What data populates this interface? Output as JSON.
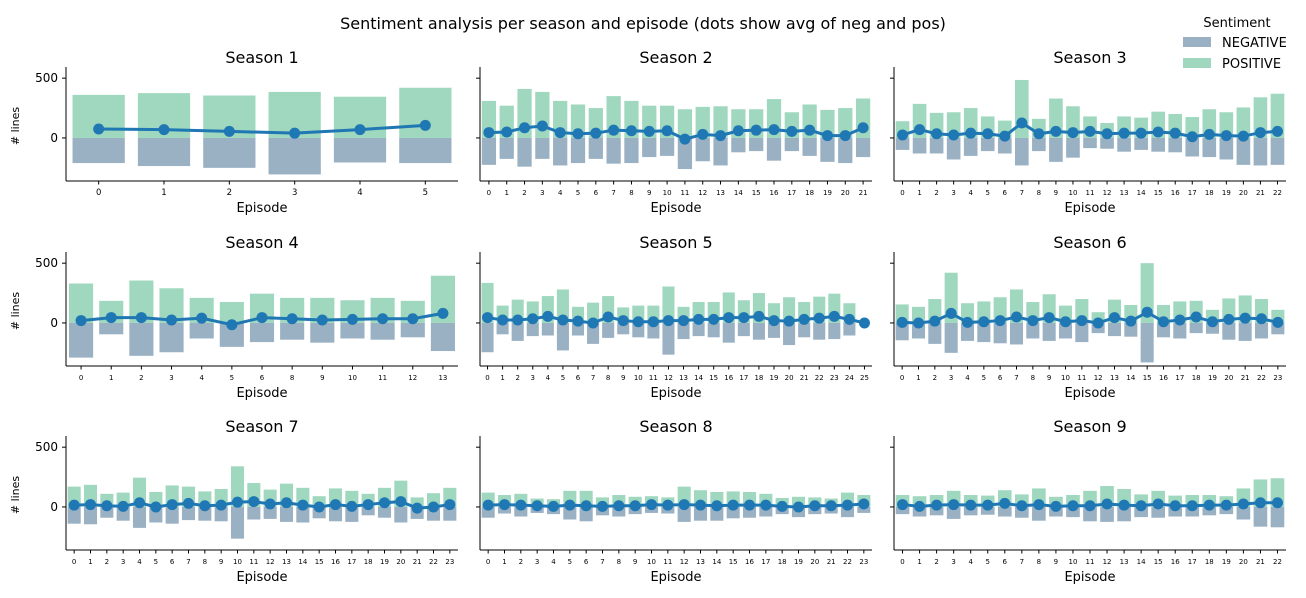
{
  "figure": {
    "title": "Sentiment analysis per season and episode (dots show avg of neg and pos)",
    "legend": {
      "title": "Sentiment",
      "placement": "top-right",
      "entries": [
        {
          "label": "NEGATIVE",
          "color": "#9ab1c4"
        },
        {
          "label": "POSITIVE",
          "color": "#9fd8be"
        }
      ]
    },
    "colors": {
      "negative": "#9ab1c4",
      "positive": "#9fd8be",
      "line": "#1f77b4"
    }
  },
  "chart_data": [
    {
      "type": "bar",
      "title": "Season 1",
      "xlabel": "Episode",
      "ylabel": "# lines",
      "ylim": [
        -360,
        560
      ],
      "yticks": [
        0,
        500
      ],
      "categories": [
        "0",
        "1",
        "2",
        "3",
        "4",
        "5"
      ],
      "series": [
        {
          "name": "POSITIVE",
          "values": [
            360,
            375,
            355,
            385,
            345,
            420
          ]
        },
        {
          "name": "NEGATIVE",
          "values": [
            -210,
            -235,
            -250,
            -305,
            -205,
            -210
          ]
        }
      ],
      "avg": [
        75,
        70,
        55,
        40,
        70,
        105
      ]
    },
    {
      "type": "bar",
      "title": "Season 2",
      "xlabel": "Episode",
      "ylabel": "",
      "ylim": [
        -360,
        560
      ],
      "yticks": [
        0,
        500
      ],
      "categories": [
        "0",
        "1",
        "2",
        "3",
        "4",
        "5",
        "6",
        "7",
        "8",
        "9",
        "10",
        "11",
        "12",
        "13",
        "14",
        "15",
        "16",
        "17",
        "18",
        "19",
        "20",
        "21"
      ],
      "series": [
        {
          "name": "POSITIVE",
          "values": [
            310,
            270,
            410,
            385,
            310,
            280,
            250,
            350,
            310,
            270,
            270,
            240,
            260,
            265,
            240,
            240,
            325,
            215,
            280,
            235,
            250,
            330
          ]
        },
        {
          "name": "NEGATIVE",
          "values": [
            -225,
            -175,
            -240,
            -175,
            -230,
            -210,
            -175,
            -215,
            -210,
            -160,
            -150,
            -260,
            -195,
            -230,
            -120,
            -110,
            -190,
            -110,
            -150,
            -200,
            -210,
            -160
          ]
        }
      ],
      "avg": [
        45,
        50,
        85,
        100,
        45,
        35,
        40,
        65,
        60,
        55,
        60,
        -10,
        30,
        20,
        60,
        65,
        70,
        55,
        65,
        20,
        20,
        85
      ]
    },
    {
      "type": "bar",
      "title": "Season 3",
      "xlabel": "Episode",
      "ylabel": "",
      "ylim": [
        -360,
        560
      ],
      "yticks": [
        0,
        500
      ],
      "categories": [
        "0",
        "1",
        "2",
        "3",
        "4",
        "5",
        "6",
        "7",
        "8",
        "9",
        "10",
        "11",
        "12",
        "13",
        "14",
        "15",
        "16",
        "17",
        "18",
        "19",
        "20",
        "21",
        "22"
      ],
      "series": [
        {
          "name": "POSITIVE",
          "values": [
            140,
            285,
            210,
            215,
            250,
            180,
            145,
            485,
            160,
            330,
            265,
            180,
            125,
            180,
            170,
            220,
            200,
            175,
            240,
            215,
            255,
            340,
            370
          ]
        },
        {
          "name": "NEGATIVE",
          "values": [
            -100,
            -130,
            -130,
            -180,
            -150,
            -110,
            -130,
            -230,
            -110,
            -200,
            -165,
            -85,
            -90,
            -115,
            -100,
            -115,
            -120,
            -155,
            -160,
            -180,
            -225,
            -230,
            -225
          ]
        }
      ],
      "avg": [
        25,
        70,
        35,
        25,
        40,
        35,
        15,
        125,
        35,
        55,
        45,
        55,
        35,
        40,
        40,
        50,
        40,
        10,
        30,
        20,
        15,
        45,
        55
      ]
    },
    {
      "type": "bar",
      "title": "Season 4",
      "xlabel": "Episode",
      "ylabel": "# lines",
      "ylim": [
        -360,
        560
      ],
      "yticks": [
        0,
        500
      ],
      "categories": [
        "0",
        "1",
        "2",
        "3",
        "4",
        "5",
        "6",
        "8",
        "9",
        "10",
        "11",
        "12",
        "13"
      ],
      "series": [
        {
          "name": "POSITIVE",
          "values": [
            330,
            185,
            355,
            290,
            210,
            175,
            245,
            210,
            210,
            190,
            210,
            185,
            395
          ]
        },
        {
          "name": "NEGATIVE",
          "values": [
            -290,
            -95,
            -275,
            -245,
            -130,
            -200,
            -160,
            -140,
            -165,
            -130,
            -140,
            -120,
            -235
          ]
        }
      ],
      "avg": [
        20,
        45,
        45,
        25,
        40,
        -15,
        45,
        35,
        25,
        30,
        35,
        35,
        80
      ]
    },
    {
      "type": "bar",
      "title": "Season 5",
      "xlabel": "Episode",
      "ylabel": "",
      "ylim": [
        -360,
        560
      ],
      "yticks": [
        0,
        500
      ],
      "categories": [
        "0",
        "1",
        "2",
        "3",
        "4",
        "5",
        "6",
        "7",
        "8",
        "9",
        "10",
        "11",
        "12",
        "13",
        "14",
        "15",
        "16",
        "17",
        "18",
        "19",
        "20",
        "21",
        "22",
        "23",
        "24",
        "25"
      ],
      "series": [
        {
          "name": "POSITIVE",
          "values": [
            335,
            145,
            195,
            180,
            225,
            280,
            135,
            170,
            225,
            130,
            145,
            145,
            305,
            135,
            175,
            175,
            255,
            190,
            250,
            165,
            215,
            175,
            220,
            245,
            165,
            0
          ]
        },
        {
          "name": "NEGATIVE",
          "values": [
            -245,
            -95,
            -150,
            -110,
            -105,
            -230,
            -105,
            -175,
            -125,
            -95,
            -120,
            -130,
            -265,
            -135,
            -110,
            -120,
            -165,
            -110,
            -140,
            -125,
            -185,
            -120,
            -140,
            -135,
            -105,
            0
          ]
        }
      ],
      "avg": [
        45,
        25,
        25,
        35,
        55,
        25,
        15,
        0,
        50,
        20,
        10,
        10,
        20,
        20,
        30,
        30,
        45,
        45,
        55,
        20,
        15,
        30,
        40,
        55,
        30,
        0
      ]
    },
    {
      "type": "bar",
      "title": "Season 6",
      "xlabel": "Episode",
      "ylabel": "",
      "ylim": [
        -360,
        560
      ],
      "yticks": [
        0,
        500
      ],
      "categories": [
        "0",
        "1",
        "2",
        "3",
        "4",
        "5",
        "6",
        "7",
        "8",
        "9",
        "10",
        "11",
        "12",
        "13",
        "14",
        "15",
        "16",
        "17",
        "18",
        "19",
        "20",
        "21",
        "22",
        "23"
      ],
      "series": [
        {
          "name": "POSITIVE",
          "values": [
            155,
            135,
            200,
            420,
            165,
            180,
            215,
            280,
            175,
            240,
            145,
            200,
            90,
            195,
            150,
            500,
            150,
            180,
            185,
            110,
            205,
            230,
            200,
            110
          ]
        },
        {
          "name": "NEGATIVE",
          "values": [
            -145,
            -130,
            -175,
            -250,
            -150,
            -160,
            -170,
            -180,
            -130,
            -150,
            -130,
            -160,
            -85,
            -110,
            -115,
            -330,
            -120,
            -130,
            -85,
            -90,
            -140,
            -150,
            -130,
            -95
          ]
        }
      ],
      "avg": [
        5,
        0,
        15,
        80,
        5,
        10,
        20,
        50,
        20,
        45,
        10,
        20,
        0,
        45,
        15,
        90,
        10,
        25,
        50,
        10,
        30,
        40,
        35,
        5
      ]
    },
    {
      "type": "bar",
      "title": "Season 7",
      "xlabel": "Episode",
      "ylabel": "# lines",
      "ylim": [
        -360,
        560
      ],
      "yticks": [
        0,
        500
      ],
      "categories": [
        "0",
        "1",
        "2",
        "3",
        "4",
        "5",
        "6",
        "7",
        "8",
        "9",
        "10",
        "11",
        "12",
        "13",
        "14",
        "15",
        "16",
        "17",
        "18",
        "19",
        "20",
        "21",
        "22",
        "23"
      ],
      "series": [
        {
          "name": "POSITIVE",
          "values": [
            170,
            185,
            110,
            120,
            245,
            125,
            180,
            170,
            130,
            150,
            340,
            200,
            145,
            195,
            160,
            90,
            155,
            135,
            110,
            160,
            220,
            80,
            115,
            160
          ]
        },
        {
          "name": "NEGATIVE",
          "values": [
            -140,
            -145,
            -90,
            -115,
            -175,
            -130,
            -140,
            -110,
            -115,
            -120,
            -265,
            -105,
            -100,
            -125,
            -130,
            -95,
            -120,
            -125,
            -70,
            -90,
            -130,
            -100,
            -115,
            -115
          ]
        }
      ],
      "avg": [
        15,
        20,
        10,
        5,
        35,
        0,
        20,
        30,
        10,
        15,
        40,
        45,
        25,
        35,
        15,
        0,
        20,
        5,
        20,
        35,
        45,
        -10,
        0,
        20
      ]
    },
    {
      "type": "bar",
      "title": "Season 8",
      "xlabel": "Episode",
      "ylabel": "",
      "ylim": [
        -360,
        560
      ],
      "yticks": [
        0,
        500
      ],
      "categories": [
        "0",
        "1",
        "2",
        "3",
        "4",
        "5",
        "6",
        "7",
        "8",
        "9",
        "10",
        "11",
        "12",
        "13",
        "14",
        "15",
        "16",
        "17",
        "18",
        "19",
        "20",
        "21",
        "22",
        "23"
      ],
      "series": [
        {
          "name": "POSITIVE",
          "values": [
            120,
            100,
            110,
            70,
            65,
            135,
            135,
            80,
            100,
            85,
            90,
            80,
            170,
            140,
            125,
            130,
            125,
            110,
            75,
            85,
            80,
            70,
            120,
            100
          ]
        },
        {
          "name": "NEGATIVE",
          "values": [
            -90,
            -55,
            -80,
            -50,
            -60,
            -105,
            -120,
            -70,
            -80,
            -60,
            -50,
            -55,
            -125,
            -115,
            -115,
            -95,
            -90,
            -80,
            -60,
            -85,
            -60,
            -55,
            -85,
            -50
          ]
        }
      ],
      "avg": [
        15,
        20,
        15,
        10,
        5,
        15,
        10,
        5,
        10,
        10,
        20,
        15,
        20,
        15,
        10,
        15,
        15,
        15,
        5,
        0,
        10,
        10,
        15,
        25
      ]
    },
    {
      "type": "bar",
      "title": "Season 9",
      "xlabel": "Episode",
      "ylabel": "",
      "ylim": [
        -360,
        560
      ],
      "yticks": [
        0,
        500
      ],
      "categories": [
        "0",
        "1",
        "2",
        "3",
        "4",
        "5",
        "6",
        "7",
        "8",
        "9",
        "10",
        "11",
        "12",
        "13",
        "14",
        "15",
        "16",
        "17",
        "18",
        "19",
        "20",
        "21",
        "22"
      ],
      "series": [
        {
          "name": "POSITIVE",
          "values": [
            100,
            90,
            100,
            135,
            100,
            95,
            140,
            105,
            155,
            85,
            100,
            135,
            175,
            150,
            105,
            135,
            95,
            100,
            100,
            90,
            155,
            230,
            240
          ]
        },
        {
          "name": "NEGATIVE",
          "values": [
            -60,
            -80,
            -70,
            -100,
            -70,
            -65,
            -80,
            -90,
            -115,
            -80,
            -85,
            -120,
            -125,
            -120,
            -85,
            -90,
            -80,
            -80,
            -70,
            -60,
            -105,
            -165,
            -170
          ]
        }
      ],
      "avg": [
        20,
        5,
        15,
        20,
        15,
        15,
        30,
        10,
        20,
        5,
        10,
        10,
        25,
        15,
        10,
        25,
        10,
        10,
        15,
        15,
        25,
        35,
        35
      ]
    }
  ]
}
